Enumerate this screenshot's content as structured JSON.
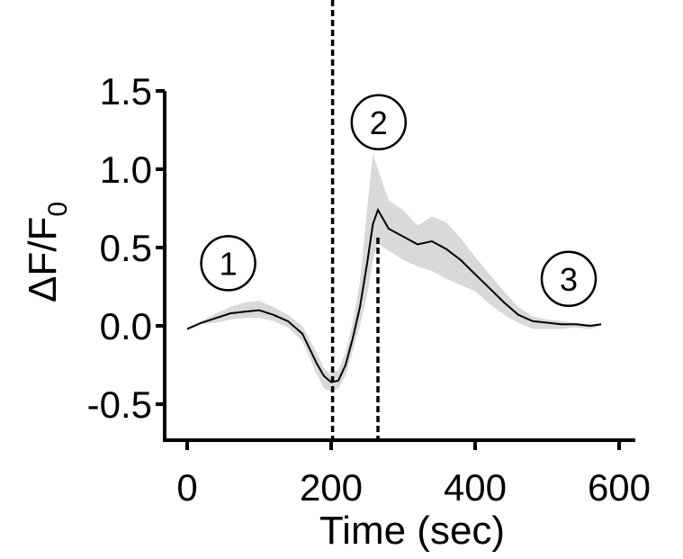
{
  "chart_data": {
    "type": "line",
    "title": "",
    "xlabel": "Time (sec)",
    "ylabel": "ΔF/F",
    "ylabel_subscript": "0",
    "xlim": [
      -30,
      610
    ],
    "ylim": [
      -0.72,
      1.5
    ],
    "x_ticks": [
      0,
      200,
      400,
      600
    ],
    "x_tick_labels": [
      "0",
      "200",
      "400",
      "600"
    ],
    "y_ticks": [
      -0.5,
      0.0,
      0.5,
      1.0,
      1.5
    ],
    "y_tick_labels": [
      "-0.5",
      "0.0",
      "0.5",
      "1.0",
      "1.5"
    ],
    "grid": false,
    "legend": "none",
    "colors": {
      "line": "#000000",
      "band": "#d9d9d9",
      "axis": "#000000"
    },
    "vertical_lines": [
      {
        "x": 202,
        "style": "dashed"
      },
      {
        "x": 265,
        "style": "dashed"
      }
    ],
    "annotations": [
      {
        "text": "1",
        "x": 57,
        "y": 0.4
      },
      {
        "text": "2",
        "x": 266,
        "y": 1.3
      },
      {
        "text": "3",
        "x": 530,
        "y": 0.3
      }
    ],
    "series": [
      {
        "x": [
          0,
          20,
          40,
          60,
          80,
          100,
          120,
          140,
          160,
          180,
          190,
          200,
          210,
          220,
          230,
          240,
          250,
          258,
          265,
          280,
          300,
          320,
          340,
          360,
          380,
          400,
          420,
          440,
          460,
          480,
          500,
          520,
          540,
          560,
          575
        ],
        "y": [
          -0.02,
          0.02,
          0.05,
          0.08,
          0.09,
          0.1,
          0.07,
          0.03,
          -0.05,
          -0.24,
          -0.32,
          -0.36,
          -0.35,
          -0.25,
          -0.08,
          0.12,
          0.4,
          0.65,
          0.74,
          0.62,
          0.57,
          0.52,
          0.54,
          0.49,
          0.42,
          0.33,
          0.24,
          0.15,
          0.07,
          0.03,
          0.02,
          0.01,
          0.01,
          0.0,
          0.01
        ],
        "upper": [
          -0.01,
          0.03,
          0.08,
          0.12,
          0.15,
          0.16,
          0.12,
          0.07,
          0.0,
          -0.17,
          -0.27,
          -0.31,
          -0.28,
          -0.17,
          0.02,
          0.28,
          0.75,
          1.1,
          1.0,
          0.8,
          0.74,
          0.64,
          0.7,
          0.66,
          0.56,
          0.44,
          0.33,
          0.22,
          0.12,
          0.06,
          0.04,
          0.03,
          0.02,
          0.01,
          0.01
        ],
        "lower": [
          -0.03,
          0.01,
          0.02,
          0.04,
          0.05,
          0.05,
          0.03,
          -0.01,
          -0.1,
          -0.31,
          -0.4,
          -0.42,
          -0.4,
          -0.32,
          -0.16,
          0.0,
          0.2,
          0.42,
          0.52,
          0.48,
          0.42,
          0.38,
          0.35,
          0.3,
          0.26,
          0.22,
          0.14,
          0.07,
          0.02,
          -0.02,
          -0.02,
          -0.02,
          -0.01,
          -0.02,
          0.0
        ]
      }
    ]
  }
}
